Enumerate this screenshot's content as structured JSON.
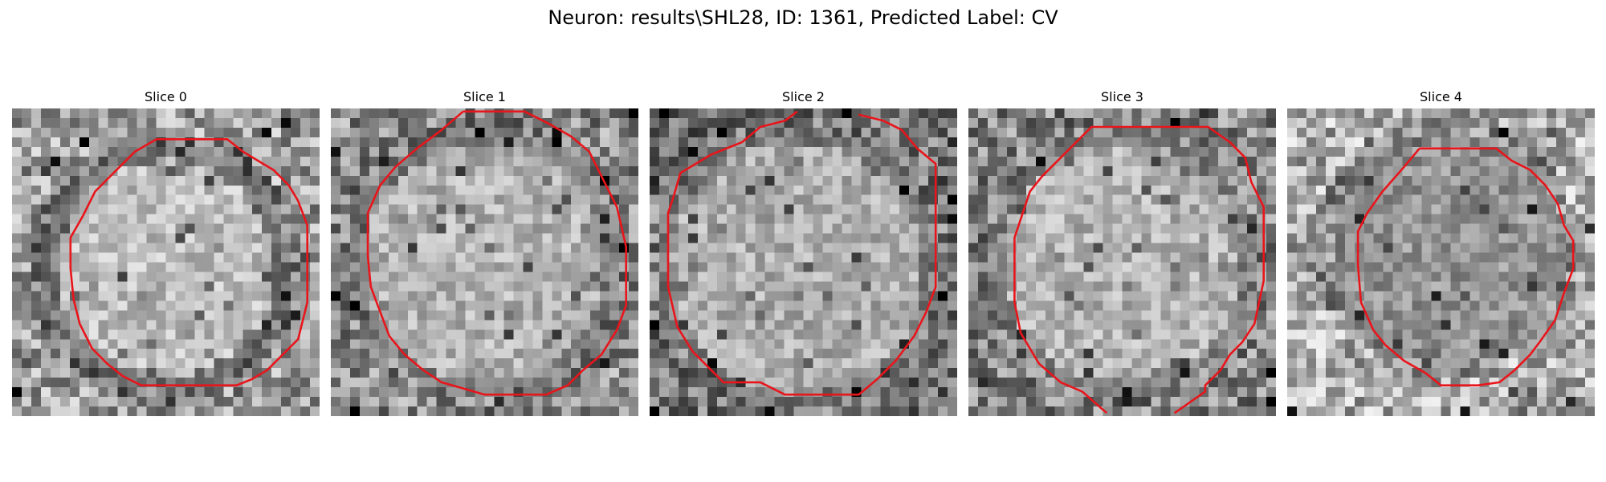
{
  "figure": {
    "title": "Neuron: results\\SHL28, ID: 1361, Predicted Label: CV"
  },
  "panels": [
    {
      "title": "Slice 0"
    },
    {
      "title": "Slice 1"
    },
    {
      "title": "Slice 2"
    },
    {
      "title": "Slice 3"
    },
    {
      "title": "Slice 4"
    }
  ],
  "colors": {
    "contour": "#e8151b",
    "background": "#ffffff",
    "image_colormap": "grayscale"
  }
}
